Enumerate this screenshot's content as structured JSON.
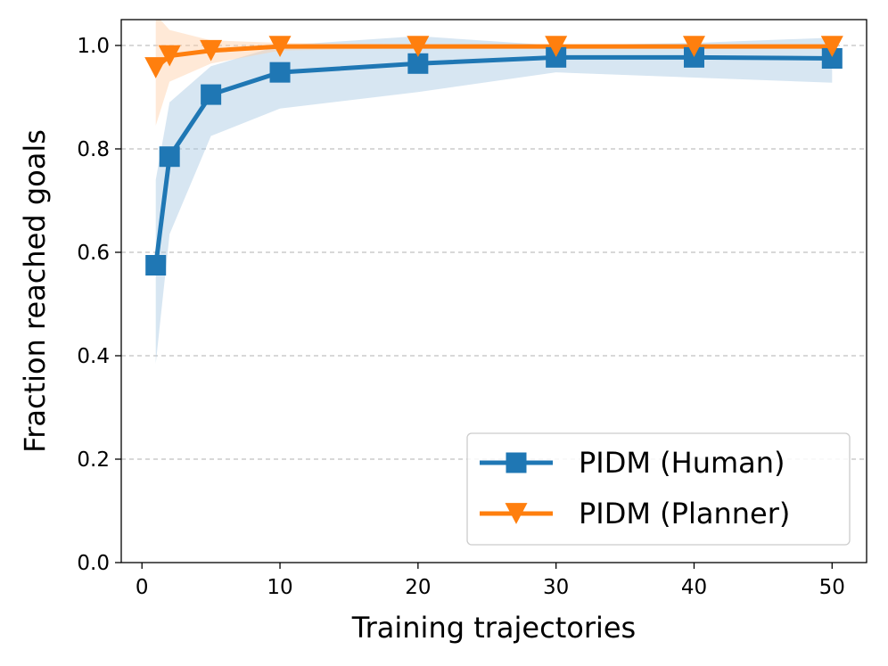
{
  "chart_data": {
    "type": "line",
    "title": "",
    "xlabel": "Training trajectories",
    "ylabel": "Fraction reached goals",
    "xlim": [
      -1.5,
      52.5
    ],
    "ylim": [
      0.0,
      1.05
    ],
    "x_ticks": [
      0,
      10,
      20,
      30,
      40,
      50
    ],
    "y_ticks": [
      0.0,
      0.2,
      0.4,
      0.6,
      0.8,
      1.0
    ],
    "x_tick_labels": [
      "0",
      "10",
      "20",
      "30",
      "40",
      "50"
    ],
    "y_tick_labels": [
      "0.0",
      "0.2",
      "0.4",
      "0.6",
      "0.8",
      "1.0"
    ],
    "grid": "y-dashed",
    "legend_position": "lower-right",
    "series": [
      {
        "name": "PIDM (Human)",
        "color": "#1f77b4",
        "band_color": "#a6c8e3",
        "marker": "square",
        "x": [
          1,
          2,
          5,
          10,
          20,
          30,
          40,
          50
        ],
        "values": [
          0.575,
          0.785,
          0.905,
          0.948,
          0.965,
          0.977,
          0.977,
          0.975
        ],
        "lower": [
          0.385,
          0.635,
          0.825,
          0.878,
          0.91,
          0.948,
          0.938,
          0.928
        ],
        "upper": [
          0.74,
          0.89,
          0.96,
          1.0,
          1.018,
          1.0,
          1.005,
          1.015
        ]
      },
      {
        "name": "PIDM (Planner)",
        "color": "#ff7f0e",
        "band_color": "#ffcfa6",
        "marker": "triangle-down",
        "x": [
          1,
          2,
          5,
          10,
          20,
          30,
          40,
          50
        ],
        "values": [
          0.957,
          0.98,
          0.99,
          0.998,
          0.998,
          0.998,
          0.998,
          0.998
        ],
        "lower": [
          0.845,
          0.93,
          0.965,
          0.99,
          0.995,
          0.995,
          0.995,
          0.995
        ],
        "upper": [
          1.06,
          1.03,
          1.01,
          1.005,
          1.002,
          1.002,
          1.002,
          1.002
        ]
      }
    ]
  }
}
